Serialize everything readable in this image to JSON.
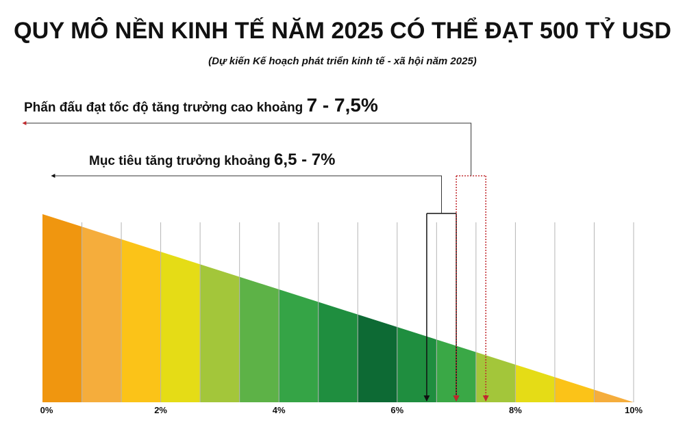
{
  "chart_data": {
    "type": "range-wedge",
    "title": "QUY MÔ NỀN KINH TẾ NĂM 2025 CÓ THỂ ĐẠT 500 TỶ USD",
    "subtitle": "(Dự kiến Kế hoạch phát triển kinh tế - xã hội năm 2025)",
    "xlim": [
      0,
      10
    ],
    "xticks": [
      {
        "value": 0,
        "label": "0%"
      },
      {
        "value": 2,
        "label": "2%"
      },
      {
        "value": 4,
        "label": "4%"
      },
      {
        "value": 6,
        "label": "6%"
      },
      {
        "value": 8,
        "label": "8%"
      },
      {
        "value": 10,
        "label": "10%"
      }
    ],
    "band_colors": [
      "#f0960f",
      "#f5ad3c",
      "#fbc318",
      "#e5dc16",
      "#a3c63a",
      "#5db247",
      "#35a446",
      "#1f8e3f",
      "#0d6a34",
      "#1f8e3f",
      "#3aa846",
      "#a3c63a",
      "#e5dc16",
      "#fbc318",
      "#f5ad3c",
      "#f0960f"
    ],
    "ranges": [
      {
        "text": "Mục tiêu tăng trưởng khoảng",
        "value_label": "6,5 - 7%",
        "range": [
          6.5,
          7
        ],
        "color": "#111111"
      },
      {
        "text": "Phấn đấu đạt tốc độ tăng trưởng cao khoảng",
        "value_label": "7 - 7,5%",
        "range": [
          7,
          7.5
        ],
        "color": "#c0282d"
      }
    ]
  }
}
